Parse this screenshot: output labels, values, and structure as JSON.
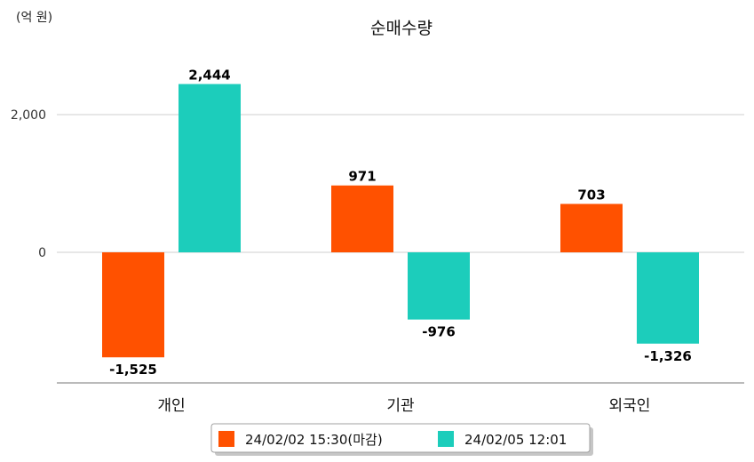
{
  "chart_data": {
    "type": "bar",
    "title": "순매수량",
    "unit_label": "(억 원)",
    "categories": [
      "개인",
      "기관",
      "외국인"
    ],
    "series": [
      {
        "name": "24/02/02 15:30(마감)",
        "color": "#ff5100",
        "values": [
          -1525,
          971,
          703
        ]
      },
      {
        "name": "24/02/05 12:01",
        "color": "#1ccdbb",
        "values": [
          2444,
          -976,
          -1326
        ]
      }
    ],
    "data_labels": [
      [
        "-1,525",
        "971",
        "703"
      ],
      [
        "2,444",
        "-976",
        "-1,326"
      ]
    ],
    "ylim": [
      -1900,
      2800
    ],
    "yticks": [
      0,
      2000
    ],
    "ytick_labels": [
      "0",
      "2,000"
    ],
    "grid": true,
    "legend_position": "bottom"
  }
}
